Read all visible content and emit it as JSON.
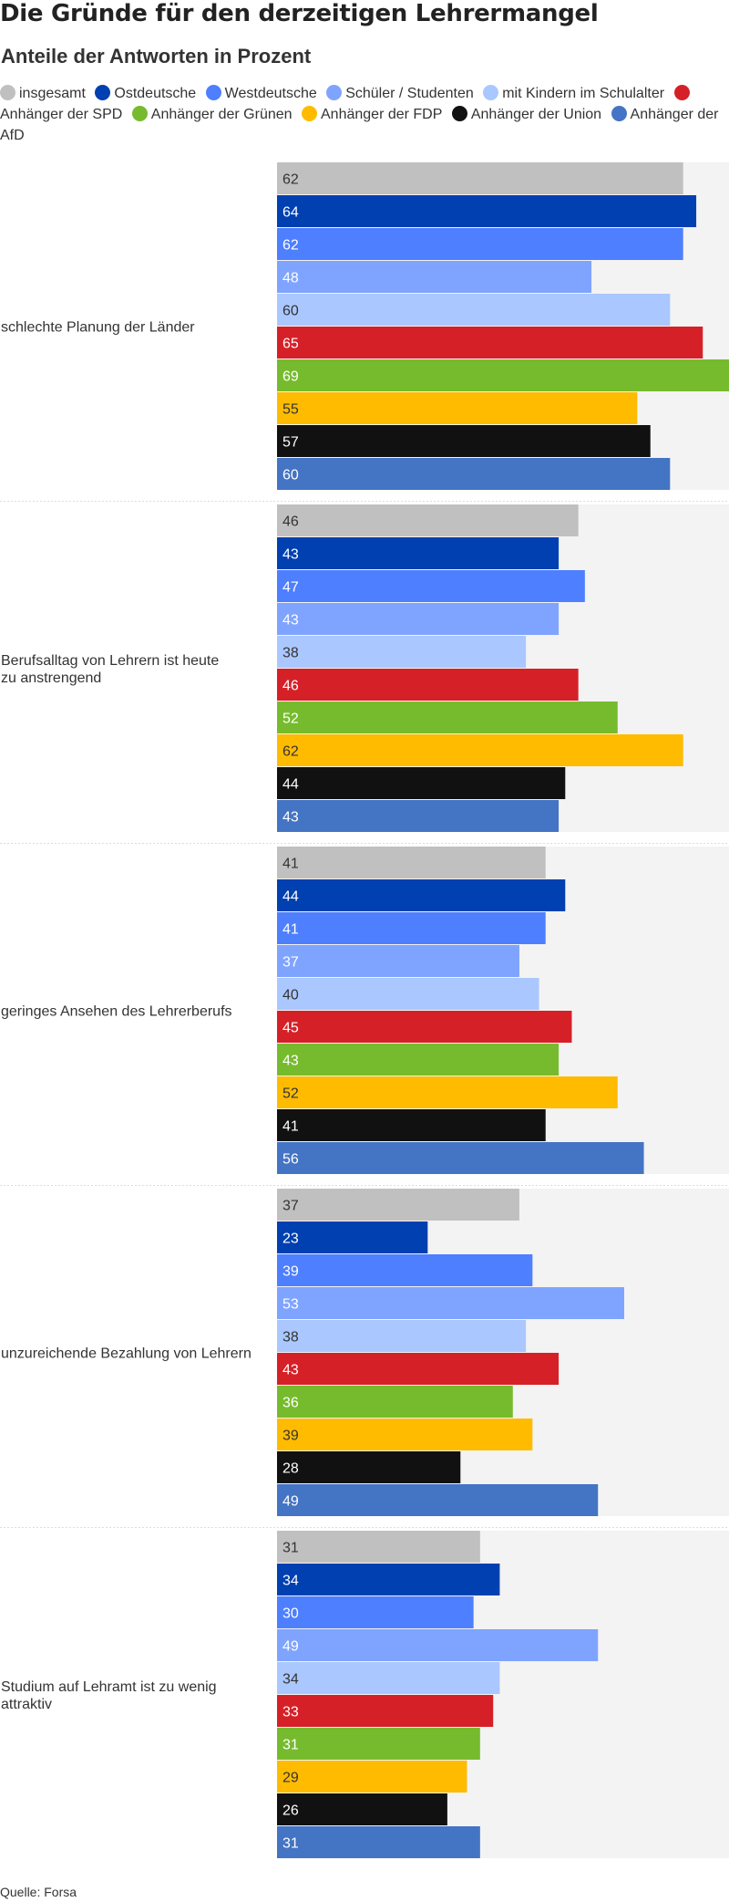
{
  "title": "Die Gründe für den derzeitigen Lehrermangel",
  "subtitle": "Anteile der Antworten in Prozent",
  "source": "Quelle: Forsa",
  "colors": {
    "track": "#f3f3f3",
    "separator": "#dddddd",
    "label_dark": "#333333",
    "label_light": "#ffffff"
  },
  "chart_data": {
    "type": "bar",
    "orientation": "horizontal",
    "xlim": [
      0,
      69
    ],
    "categories": [
      "schlechte Planung der Länder",
      "Berufsalltag von Lehrern ist heute zu anstrengend",
      "geringes Ansehen des Lehrerberufs",
      "unzureichende Bezahlung von Lehrern",
      "Studium auf Lehramt ist zu wenig attraktiv"
    ],
    "series": [
      {
        "name": "insgesamt",
        "color": "#c0c0c0",
        "label_color": "dark",
        "values": [
          62,
          46,
          41,
          37,
          31
        ]
      },
      {
        "name": "Ostdeutsche",
        "color": "#0040b0",
        "label_color": "light",
        "values": [
          64,
          43,
          44,
          23,
          34
        ]
      },
      {
        "name": "Westdeutsche",
        "color": "#4d7fff",
        "label_color": "light",
        "values": [
          62,
          47,
          41,
          39,
          30
        ]
      },
      {
        "name": "Schüler / Studenten",
        "color": "#7fa4ff",
        "label_color": "light",
        "values": [
          48,
          43,
          37,
          53,
          49
        ]
      },
      {
        "name": "mit Kindern im Schulalter",
        "color": "#aac8ff",
        "label_color": "dark",
        "values": [
          60,
          38,
          40,
          38,
          34
        ]
      },
      {
        "name": "Anhänger der SPD",
        "color": "#d62027",
        "label_color": "light",
        "values": [
          65,
          46,
          45,
          43,
          33
        ]
      },
      {
        "name": "Anhänger der Grünen",
        "color": "#76bb2e",
        "label_color": "light",
        "values": [
          69,
          52,
          43,
          36,
          31
        ]
      },
      {
        "name": "Anhänger der FDP",
        "color": "#ffbb00",
        "label_color": "dark",
        "values": [
          55,
          62,
          52,
          39,
          29
        ]
      },
      {
        "name": "Anhänger der Union",
        "color": "#111111",
        "label_color": "light",
        "values": [
          57,
          44,
          41,
          28,
          26
        ]
      },
      {
        "name": "Anhänger der AfD",
        "color": "#4474c4",
        "label_color": "light",
        "values": [
          60,
          43,
          56,
          49,
          31
        ]
      }
    ]
  }
}
